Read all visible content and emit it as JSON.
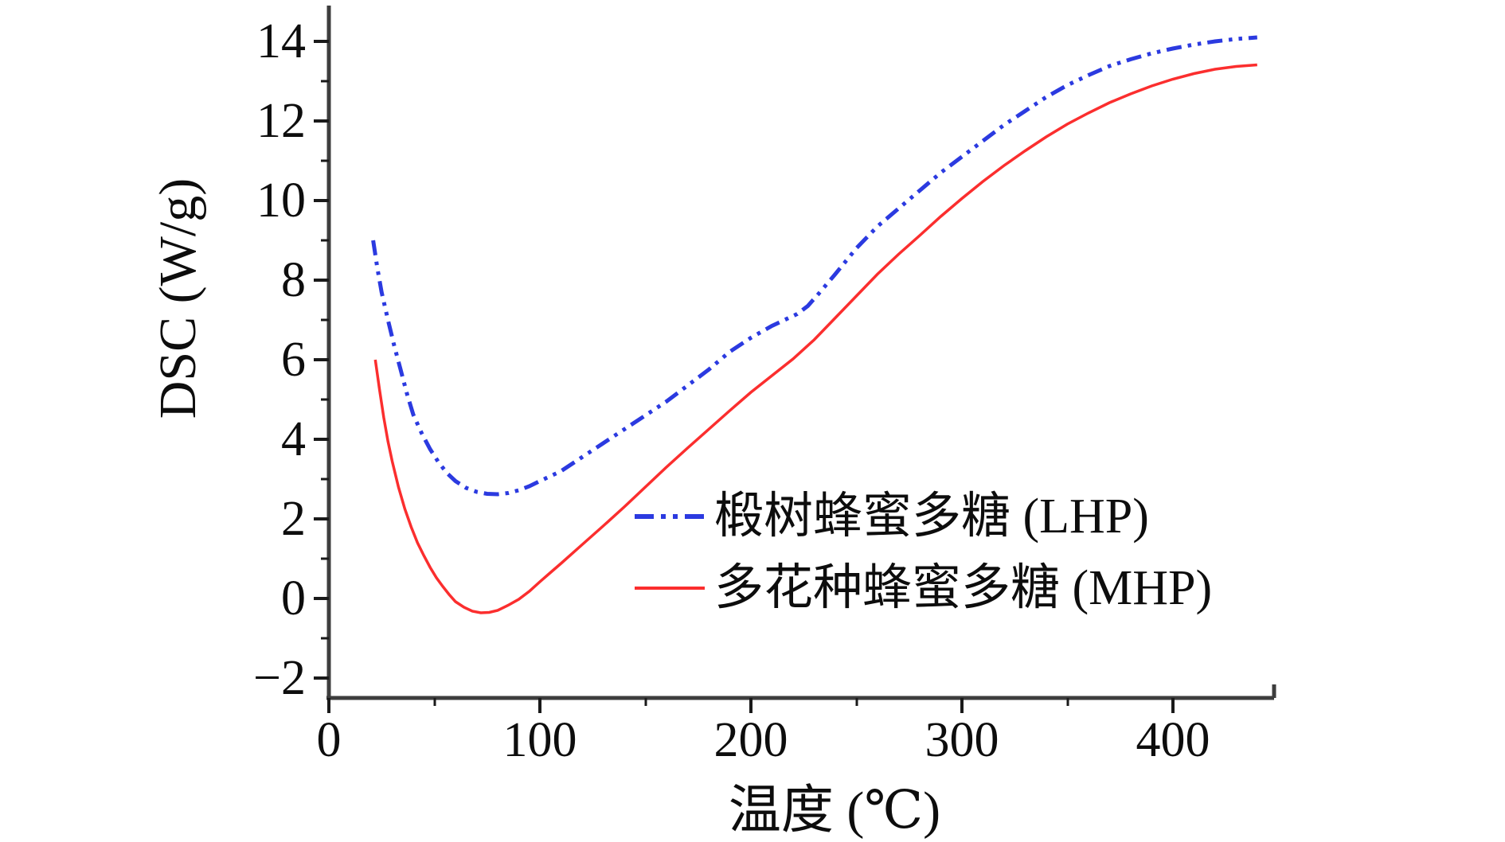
{
  "figure": {
    "y_axis_label": "DSC (W/g)",
    "x_axis_label": "温度 (℃)",
    "y_ticks": [
      "14",
      "12",
      "10",
      "8",
      "6",
      "4",
      "2",
      "0",
      "−2"
    ],
    "x_ticks": [
      "0",
      "100",
      "200",
      "300",
      "400"
    ],
    "legend": [
      {
        "label": "椴树蜂蜜多糖 (LHP)",
        "color": "#2b3ae0",
        "style": "dash-dot-dot"
      },
      {
        "label": "多花种蜂蜜多糖 (MHP)",
        "color": "#fb2e2e",
        "style": "solid"
      }
    ]
  },
  "chart_data": {
    "type": "line",
    "title": "",
    "xlabel": "温度 (℃)",
    "ylabel": "DSC (W/g)",
    "xlim": [
      0,
      448
    ],
    "ylim": [
      -2.5,
      14.9
    ],
    "x_major_ticks": [
      0,
      100,
      200,
      300,
      400
    ],
    "x_minor_step": 50,
    "y_major_ticks": [
      -2,
      0,
      2,
      4,
      6,
      8,
      10,
      12,
      14
    ],
    "y_minor_step": 1,
    "grid": false,
    "legend_position": "inside-middle-right",
    "series": [
      {
        "name": "椴树蜂蜜多糖 (LHP)",
        "color": "#2b3ae0",
        "line_style": "dash-dot-dot",
        "points": [
          [
            21,
            9.0
          ],
          [
            23,
            8.3
          ],
          [
            25,
            7.7
          ],
          [
            28,
            7.0
          ],
          [
            31,
            6.35
          ],
          [
            34,
            5.75
          ],
          [
            37,
            5.15
          ],
          [
            40,
            4.62
          ],
          [
            44,
            4.15
          ],
          [
            48,
            3.75
          ],
          [
            52,
            3.42
          ],
          [
            56,
            3.15
          ],
          [
            60,
            2.95
          ],
          [
            65,
            2.78
          ],
          [
            70,
            2.68
          ],
          [
            75,
            2.63
          ],
          [
            80,
            2.62
          ],
          [
            85,
            2.65
          ],
          [
            90,
            2.72
          ],
          [
            95,
            2.82
          ],
          [
            100,
            2.95
          ],
          [
            110,
            3.2
          ],
          [
            120,
            3.55
          ],
          [
            130,
            3.9
          ],
          [
            140,
            4.25
          ],
          [
            150,
            4.6
          ],
          [
            160,
            4.95
          ],
          [
            170,
            5.35
          ],
          [
            180,
            5.75
          ],
          [
            190,
            6.2
          ],
          [
            200,
            6.55
          ],
          [
            210,
            6.85
          ],
          [
            216,
            7.0
          ],
          [
            222,
            7.15
          ],
          [
            227,
            7.35
          ],
          [
            232,
            7.65
          ],
          [
            240,
            8.15
          ],
          [
            250,
            8.8
          ],
          [
            260,
            9.35
          ],
          [
            270,
            9.8
          ],
          [
            280,
            10.25
          ],
          [
            290,
            10.7
          ],
          [
            300,
            11.1
          ],
          [
            310,
            11.5
          ],
          [
            320,
            11.9
          ],
          [
            330,
            12.25
          ],
          [
            340,
            12.6
          ],
          [
            350,
            12.9
          ],
          [
            360,
            13.15
          ],
          [
            370,
            13.38
          ],
          [
            380,
            13.55
          ],
          [
            390,
            13.7
          ],
          [
            400,
            13.82
          ],
          [
            410,
            13.92
          ],
          [
            420,
            14.0
          ],
          [
            430,
            14.06
          ],
          [
            440,
            14.1
          ]
        ]
      },
      {
        "name": "多花种蜂蜜多糖 (MHP)",
        "color": "#fb2e2e",
        "line_style": "solid",
        "points": [
          [
            22,
            6.0
          ],
          [
            24,
            5.25
          ],
          [
            26,
            4.55
          ],
          [
            28,
            3.95
          ],
          [
            30,
            3.45
          ],
          [
            33,
            2.8
          ],
          [
            36,
            2.25
          ],
          [
            39,
            1.8
          ],
          [
            42,
            1.4
          ],
          [
            45,
            1.08
          ],
          [
            48,
            0.78
          ],
          [
            51,
            0.52
          ],
          [
            54,
            0.3
          ],
          [
            57,
            0.1
          ],
          [
            60,
            -0.08
          ],
          [
            64,
            -0.22
          ],
          [
            68,
            -0.32
          ],
          [
            72,
            -0.36
          ],
          [
            76,
            -0.35
          ],
          [
            80,
            -0.3
          ],
          [
            85,
            -0.17
          ],
          [
            90,
            -0.02
          ],
          [
            95,
            0.18
          ],
          [
            100,
            0.42
          ],
          [
            105,
            0.65
          ],
          [
            110,
            0.88
          ],
          [
            120,
            1.35
          ],
          [
            130,
            1.82
          ],
          [
            140,
            2.3
          ],
          [
            150,
            2.8
          ],
          [
            160,
            3.3
          ],
          [
            170,
            3.78
          ],
          [
            180,
            4.25
          ],
          [
            190,
            4.72
          ],
          [
            200,
            5.18
          ],
          [
            210,
            5.6
          ],
          [
            220,
            6.02
          ],
          [
            230,
            6.5
          ],
          [
            240,
            7.05
          ],
          [
            250,
            7.6
          ],
          [
            260,
            8.15
          ],
          [
            270,
            8.65
          ],
          [
            280,
            9.12
          ],
          [
            290,
            9.6
          ],
          [
            300,
            10.05
          ],
          [
            310,
            10.48
          ],
          [
            320,
            10.88
          ],
          [
            330,
            11.25
          ],
          [
            340,
            11.6
          ],
          [
            350,
            11.92
          ],
          [
            360,
            12.2
          ],
          [
            370,
            12.46
          ],
          [
            380,
            12.68
          ],
          [
            390,
            12.88
          ],
          [
            400,
            13.05
          ],
          [
            410,
            13.19
          ],
          [
            420,
            13.3
          ],
          [
            430,
            13.37
          ],
          [
            440,
            13.41
          ]
        ]
      }
    ]
  }
}
